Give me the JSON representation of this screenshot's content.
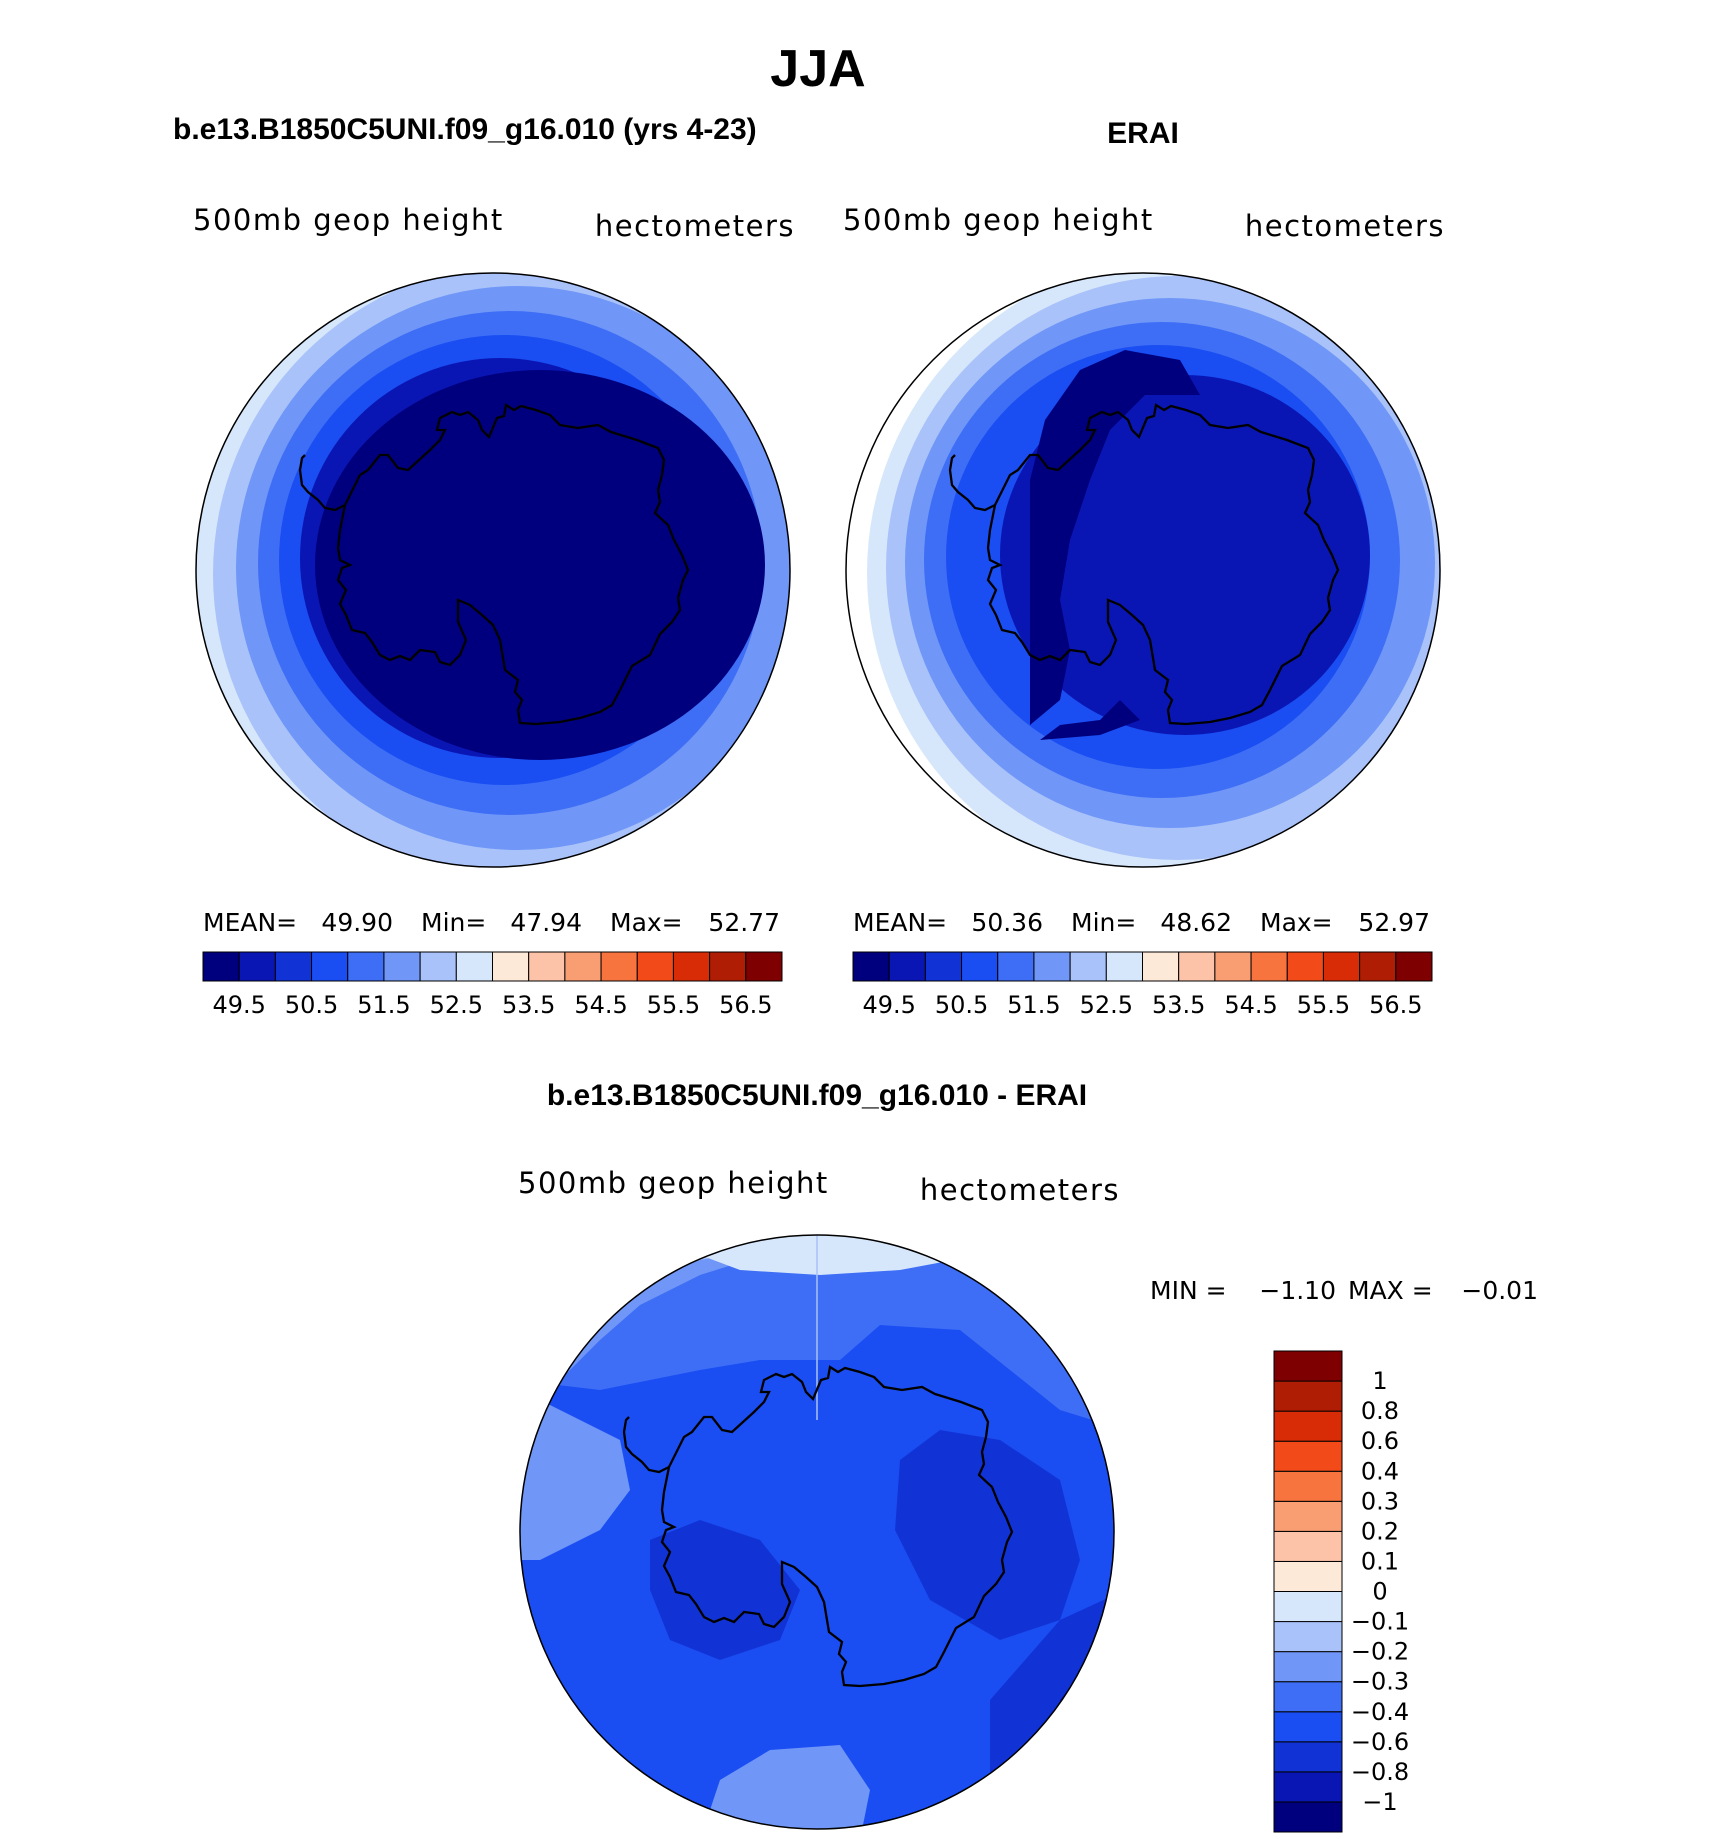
{
  "figure": {
    "title": "JJA",
    "panels": {
      "model": {
        "title": "b.e13.B1850C5UNI.f09_g16.010 (yrs 4-23)",
        "left_label": "500mb geop height",
        "right_label": "hectometers",
        "stats": {
          "mean_label": "MEAN=",
          "mean": "49.90",
          "min_label": "Min=",
          "min": "47.94",
          "max_label": "Max=",
          "max": "52.77"
        }
      },
      "obs": {
        "title": "ERAI",
        "left_label": "500mb geop height",
        "right_label": "hectometers",
        "stats": {
          "mean_label": "MEAN=",
          "mean": "50.36",
          "min_label": "Min=",
          "min": "48.62",
          "max_label": "Max=",
          "max": "52.97"
        }
      },
      "diff": {
        "title": "b.e13.B1850C5UNI.f09_g16.010 - ERAI",
        "left_label": "500mb geop height",
        "right_label": "hectometers",
        "minmax": {
          "min_label": "MIN =",
          "min": "−1.10",
          "max_label": "MAX =",
          "max": "−0.01"
        }
      }
    }
  },
  "chart_data": [
    {
      "type": "heatmap",
      "title": "b.e13.B1850C5UNI.f09_g16.010 (yrs 4-23)",
      "field": "500mb geop height",
      "units": "hectometers",
      "projection": "south polar stereographic",
      "mean": 49.9,
      "min": 47.94,
      "max": 52.77,
      "colorbar": {
        "orientation": "horizontal",
        "levels": [
          49.5,
          50,
          50.5,
          51,
          51.5,
          52,
          52.5,
          53,
          53.5,
          54,
          54.5,
          55,
          55.5,
          56,
          56.5
        ],
        "tick_labels": [
          "49.5",
          "50.5",
          "51.5",
          "52.5",
          "53.5",
          "54.5",
          "55.5",
          "56.5"
        ],
        "colors": [
          "#00007f",
          "#0a16b4",
          "#1133d6",
          "#1a4ef2",
          "#3e6ef5",
          "#7097f7",
          "#a9c2f9",
          "#d6e7fb",
          "#fde9d8",
          "#fcc3a8",
          "#f99d73",
          "#f7743f",
          "#f34a19",
          "#d72c06",
          "#b01d05",
          "#7f0000"
        ]
      }
    },
    {
      "type": "heatmap",
      "title": "ERAI",
      "field": "500mb geop height",
      "units": "hectometers",
      "projection": "south polar stereographic",
      "mean": 50.36,
      "min": 48.62,
      "max": 52.97,
      "colorbar": {
        "orientation": "horizontal",
        "levels": [
          49.5,
          50,
          50.5,
          51,
          51.5,
          52,
          52.5,
          53,
          53.5,
          54,
          54.5,
          55,
          55.5,
          56,
          56.5
        ],
        "tick_labels": [
          "49.5",
          "50.5",
          "51.5",
          "52.5",
          "53.5",
          "54.5",
          "55.5",
          "56.5"
        ],
        "colors": [
          "#00007f",
          "#0a16b4",
          "#1133d6",
          "#1a4ef2",
          "#3e6ef5",
          "#7097f7",
          "#a9c2f9",
          "#d6e7fb",
          "#fde9d8",
          "#fcc3a8",
          "#f99d73",
          "#f7743f",
          "#f34a19",
          "#d72c06",
          "#b01d05",
          "#7f0000"
        ]
      }
    },
    {
      "type": "heatmap",
      "title": "b.e13.B1850C5UNI.f09_g16.010 - ERAI",
      "field": "500mb geop height",
      "units": "hectometers",
      "projection": "south polar stereographic",
      "min": -1.1,
      "max": -0.01,
      "colorbar": {
        "orientation": "vertical",
        "levels": [
          -1,
          -0.8,
          -0.6,
          -0.4,
          -0.3,
          -0.2,
          -0.1,
          0,
          0.1,
          0.2,
          0.3,
          0.4,
          0.6,
          0.8,
          1
        ],
        "tick_labels": [
          "−1",
          "−0.8",
          "−0.6",
          "−0.4",
          "−0.3",
          "−0.2",
          "−0.1",
          "0",
          "0.1",
          "0.2",
          "0.3",
          "0.4",
          "0.6",
          "0.8",
          "1"
        ],
        "colors": [
          "#00007f",
          "#0a16b4",
          "#1133d6",
          "#1a4ef2",
          "#3e6ef5",
          "#7097f7",
          "#a9c2f9",
          "#d6e7fb",
          "#fde9d8",
          "#fcc3a8",
          "#f99d73",
          "#f7743f",
          "#f34a19",
          "#d72c06",
          "#b01d05",
          "#7f0000"
        ]
      }
    }
  ]
}
